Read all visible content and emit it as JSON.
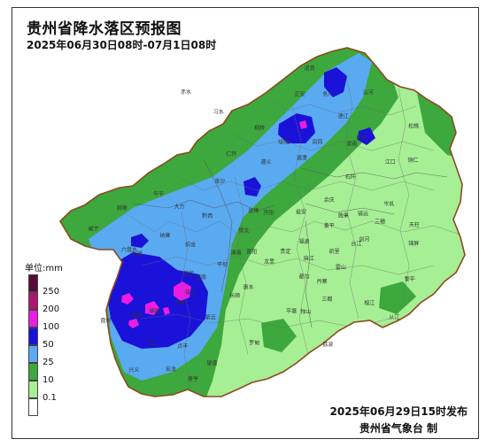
{
  "header": {
    "title": "贵州省降水落区预报图",
    "period": "2025年06月30日08时-07月1日08时"
  },
  "footer": {
    "issued": "2025年06月29日15时发布",
    "agency": "贵州省气象台 制"
  },
  "legend": {
    "unit_label": "单位:mm",
    "levels": [
      {
        "label": "250",
        "color": "#5a0a3a"
      },
      {
        "label": "200",
        "color": "#b0156f"
      },
      {
        "label": "100",
        "color": "#ec1ce4"
      },
      {
        "label": "50",
        "color": "#1a12d8"
      },
      {
        "label": "25",
        "color": "#5aaaf2"
      },
      {
        "label": "10",
        "color": "#3da83d"
      },
      {
        "label": "0.1",
        "color": "#a6ef94"
      },
      {
        "label": "",
        "color": "#ffffff"
      }
    ]
  },
  "colors": {
    "base": "#a6ef94",
    "rain_10": "#3da83d",
    "rain_25": "#5aaaf2",
    "rain_50": "#1a12d8",
    "rain_100": "#ec1ce4",
    "border": "#8b4a1e"
  },
  "map": {
    "places": [
      {
        "name": "习水",
        "lon": 106.2,
        "lat": 28.33
      },
      {
        "name": "赤水",
        "lon": 105.7,
        "lat": 28.58
      },
      {
        "name": "仁怀",
        "lon": 106.4,
        "lat": 27.8
      },
      {
        "name": "桐梓",
        "lon": 106.83,
        "lat": 28.13
      },
      {
        "name": "正安",
        "lon": 107.45,
        "lat": 28.55
      },
      {
        "name": "道真",
        "lon": 107.6,
        "lat": 28.88
      },
      {
        "name": "务川",
        "lon": 107.88,
        "lat": 28.55
      },
      {
        "name": "绥阳",
        "lon": 107.2,
        "lat": 27.95
      },
      {
        "name": "遵义",
        "lon": 106.93,
        "lat": 27.7
      },
      {
        "name": "湄潭",
        "lon": 107.48,
        "lat": 27.75
      },
      {
        "name": "凤冈",
        "lon": 107.72,
        "lat": 27.95
      },
      {
        "name": "德江",
        "lon": 108.12,
        "lat": 28.27
      },
      {
        "name": "沿河",
        "lon": 108.5,
        "lat": 28.57
      },
      {
        "name": "印江",
        "lon": 108.4,
        "lat": 28.0
      },
      {
        "name": "思南",
        "lon": 108.25,
        "lat": 27.93
      },
      {
        "name": "松桃",
        "lon": 109.2,
        "lat": 28.15
      },
      {
        "name": "铜仁",
        "lon": 109.19,
        "lat": 27.72
      },
      {
        "name": "江口",
        "lon": 108.84,
        "lat": 27.7
      },
      {
        "name": "石阡",
        "lon": 108.23,
        "lat": 27.51
      },
      {
        "name": "余庆",
        "lon": 107.9,
        "lat": 27.22
      },
      {
        "name": "金沙",
        "lon": 106.22,
        "lat": 27.46
      },
      {
        "name": "毕节",
        "lon": 105.28,
        "lat": 27.3
      },
      {
        "name": "大方",
        "lon": 105.6,
        "lat": 27.14
      },
      {
        "name": "黔西",
        "lon": 106.03,
        "lat": 27.02
      },
      {
        "name": "威宁",
        "lon": 104.28,
        "lat": 26.86
      },
      {
        "name": "赫章",
        "lon": 104.72,
        "lat": 27.12
      },
      {
        "name": "纳雍",
        "lon": 105.38,
        "lat": 26.78
      },
      {
        "name": "织金",
        "lon": 105.77,
        "lat": 26.66
      },
      {
        "name": "水城",
        "lon": 104.95,
        "lat": 26.55
      },
      {
        "name": "六盘水",
        "lon": 104.83,
        "lat": 26.6
      },
      {
        "name": "盘州",
        "lon": 104.47,
        "lat": 25.71
      },
      {
        "name": "普安",
        "lon": 104.95,
        "lat": 25.78
      },
      {
        "name": "晴隆",
        "lon": 105.22,
        "lat": 25.83
      },
      {
        "name": "兴仁",
        "lon": 105.18,
        "lat": 25.43
      },
      {
        "name": "兴义",
        "lon": 104.9,
        "lat": 25.09
      },
      {
        "name": "安龙",
        "lon": 105.47,
        "lat": 25.1
      },
      {
        "name": "贞丰",
        "lon": 105.65,
        "lat": 25.39
      },
      {
        "name": "册亨",
        "lon": 105.81,
        "lat": 24.98
      },
      {
        "name": "望谟",
        "lon": 106.1,
        "lat": 25.17
      },
      {
        "name": "关岭",
        "lon": 105.62,
        "lat": 25.94
      },
      {
        "name": "镇宁",
        "lon": 105.77,
        "lat": 26.06
      },
      {
        "name": "紫云",
        "lon": 106.08,
        "lat": 25.75
      },
      {
        "name": "普定",
        "lon": 105.74,
        "lat": 26.3
      },
      {
        "name": "安顺",
        "lon": 105.93,
        "lat": 26.25
      },
      {
        "name": "平坝",
        "lon": 106.26,
        "lat": 26.41
      },
      {
        "name": "清镇",
        "lon": 106.47,
        "lat": 26.56
      },
      {
        "name": "修文",
        "lon": 106.59,
        "lat": 26.84
      },
      {
        "name": "息烽",
        "lon": 106.74,
        "lat": 27.09
      },
      {
        "name": "开阳",
        "lon": 106.97,
        "lat": 27.06
      },
      {
        "name": "贵阳",
        "lon": 106.71,
        "lat": 26.57
      },
      {
        "name": "龙里",
        "lon": 106.98,
        "lat": 26.45
      },
      {
        "name": "贵定",
        "lon": 107.23,
        "lat": 26.58
      },
      {
        "name": "瓮安",
        "lon": 107.47,
        "lat": 27.07
      },
      {
        "name": "福泉",
        "lon": 107.52,
        "lat": 26.7
      },
      {
        "name": "惠水",
        "lon": 106.66,
        "lat": 26.13
      },
      {
        "name": "长顺",
        "lon": 106.45,
        "lat": 26.02
      },
      {
        "name": "罗甸",
        "lon": 106.75,
        "lat": 25.43
      },
      {
        "name": "平塘",
        "lon": 107.32,
        "lat": 25.83
      },
      {
        "name": "独山",
        "lon": 107.54,
        "lat": 25.82
      },
      {
        "name": "都匀",
        "lon": 107.52,
        "lat": 26.26
      },
      {
        "name": "三都",
        "lon": 107.87,
        "lat": 25.98
      },
      {
        "name": "荔波",
        "lon": 107.88,
        "lat": 25.41
      },
      {
        "name": "丹寨",
        "lon": 107.79,
        "lat": 26.2
      },
      {
        "name": "麻江",
        "lon": 107.59,
        "lat": 26.49
      },
      {
        "name": "凯里",
        "lon": 107.98,
        "lat": 26.58
      },
      {
        "name": "黄平",
        "lon": 107.9,
        "lat": 26.9
      },
      {
        "name": "施秉",
        "lon": 108.12,
        "lat": 27.03
      },
      {
        "name": "镇远",
        "lon": 108.42,
        "lat": 27.05
      },
      {
        "name": "岑巩",
        "lon": 108.82,
        "lat": 27.17
      },
      {
        "name": "三穗",
        "lon": 108.68,
        "lat": 26.95
      },
      {
        "name": "天柱",
        "lon": 109.21,
        "lat": 26.91
      },
      {
        "name": "锦屏",
        "lon": 109.2,
        "lat": 26.68
      },
      {
        "name": "剑河",
        "lon": 108.44,
        "lat": 26.73
      },
      {
        "name": "台江",
        "lon": 108.32,
        "lat": 26.67
      },
      {
        "name": "雷山",
        "lon": 108.08,
        "lat": 26.38
      },
      {
        "name": "榕江",
        "lon": 108.52,
        "lat": 25.93
      },
      {
        "name": "黎平",
        "lon": 109.14,
        "lat": 26.23
      },
      {
        "name": "从江",
        "lon": 108.9,
        "lat": 25.75
      }
    ]
  }
}
